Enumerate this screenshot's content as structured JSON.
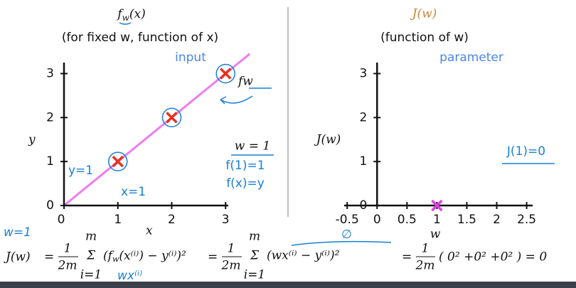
{
  "chart_data": [
    {
      "type": "scatter",
      "title": [
        "f",
        "w",
        "(x)"
      ],
      "subtitle": "(for fixed w, function of x)",
      "note": "input",
      "x_label": "x",
      "y_label": "y",
      "x": [
        1,
        2,
        3
      ],
      "values": [
        1,
        2,
        3
      ],
      "color": "#e8321e",
      "fit_line": {
        "x": [
          0,
          3.45
        ],
        "values": [
          0,
          3.45
        ],
        "color": "#f07cf0"
      },
      "xlim": [
        0,
        3.05
      ],
      "ylim": [
        0,
        3.25
      ],
      "xticks": [
        0,
        1,
        2,
        3
      ],
      "yticks": [
        0,
        1,
        2,
        3
      ],
      "annotations": [
        "w = 1",
        "f(1)=1",
        "f(x)=y",
        "y=1",
        "x=1",
        "fw"
      ]
    },
    {
      "type": "scatter",
      "title": [
        "J(w)"
      ],
      "subtitle": "(function of w)",
      "note": "parameter",
      "x_label": "w",
      "y_label": "J(w)",
      "x": [
        1
      ],
      "values": [
        0
      ],
      "color": "#e040e0",
      "xlim": [
        -0.55,
        2.6
      ],
      "ylim": [
        0,
        3.25
      ],
      "xticks": [
        -0.5,
        0,
        0.5,
        1,
        1.5,
        2,
        2.5
      ],
      "yticks": [
        0,
        1,
        2,
        3
      ],
      "annotations": [
        "J(1)=0"
      ]
    }
  ],
  "formula": {
    "parts": [
      "J(w)",
      "=",
      "1",
      "2m",
      "m",
      "Σ",
      "i=1",
      "(f",
      "w",
      "(x⁽ⁱ⁾) − y⁽ⁱ⁾)²",
      "=",
      "1",
      "2m",
      "m",
      "Σ",
      "i=1",
      "(wx⁽ⁱ⁾ − y⁽ⁱ⁾)²",
      "=",
      "1",
      "2m",
      "( 0² +0² +0² ) = 0"
    ],
    "handwriting": [
      "w=1",
      "wx⁽ⁱ⁾",
      "∅"
    ]
  }
}
